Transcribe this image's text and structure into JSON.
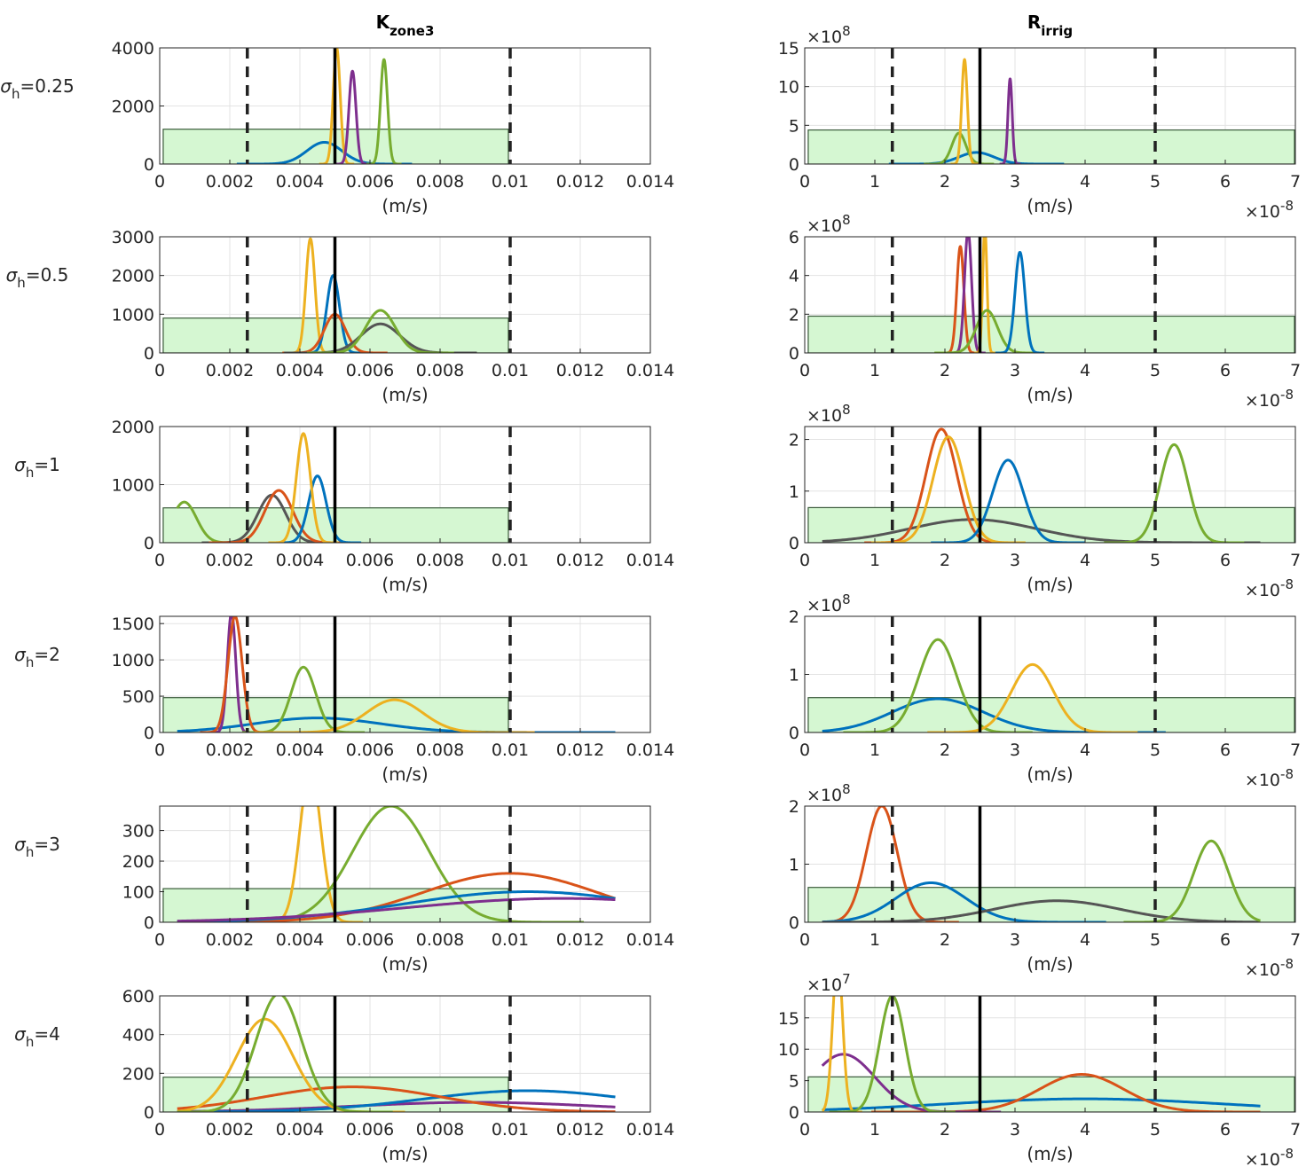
{
  "chart_data": {
    "type": "line",
    "description_columns": [
      "K_zone3",
      "R_irrig"
    ],
    "columns": [
      {
        "title": "K",
        "title_sub": "zone3",
        "xlabel": "(m/s)",
        "xlim": [
          0,
          0.014
        ],
        "xticks": [
          0,
          0.002,
          0.004,
          0.006,
          0.008,
          0.01,
          0.012,
          0.014
        ],
        "xtick_labels": [
          "0",
          "0.002",
          "0.004",
          "0.006",
          "0.008",
          "0.01",
          "0.012",
          "0.014"
        ],
        "x_multiplier": "",
        "x_exponent": "",
        "bounds": [
          0.0025,
          0.01
        ],
        "truth": 0.005
      },
      {
        "title": "R",
        "title_sub": "irrig",
        "xlabel": "(m/s)",
        "xlim": [
          0,
          7
        ],
        "xticks": [
          0,
          1,
          2,
          3,
          4,
          5,
          6,
          7
        ],
        "xtick_labels": [
          "0",
          "1",
          "2",
          "3",
          "4",
          "5",
          "6",
          "7"
        ],
        "x_multiplier": "×10",
        "x_exponent": "-8",
        "bounds": [
          1.25,
          5
        ],
        "truth": 2.5
      }
    ],
    "rows": [
      {
        "label": "σ",
        "label_sub": "h",
        "label_val": "=0.25",
        "panels": [
          {
            "ylim": [
              0,
              4000
            ],
            "yticks": [
              0,
              2000,
              4000
            ],
            "ytick_labels": [
              "0",
              "2000",
              "4000"
            ],
            "y_multiplier": "",
            "y_exponent": "",
            "box_height": 1200,
            "series": [
              {
                "name": "blue",
                "color": "#0072BD",
                "mu": 0.0047,
                "sigma": 0.0005,
                "peak": 750
              },
              {
                "name": "yellow",
                "color": "#EDB120",
                "mu": 0.00505,
                "sigma": 0.0001,
                "peak": 4000
              },
              {
                "name": "purple",
                "color": "#7E2F8E",
                "mu": 0.0055,
                "sigma": 0.0001,
                "peak": 3200
              },
              {
                "name": "green",
                "color": "#77AC30",
                "mu": 0.0064,
                "sigma": 0.0001,
                "peak": 3600
              }
            ]
          },
          {
            "ylim": [
              0,
              15
            ],
            "yticks": [
              0,
              5,
              10,
              15
            ],
            "ytick_labels": [
              "0",
              "5",
              "10",
              "15"
            ],
            "y_multiplier": "×10",
            "y_exponent": "8",
            "box_height": 4.4,
            "series": [
              {
                "name": "blue",
                "color": "#0072BD",
                "mu": 2.45,
                "sigma": 0.25,
                "peak": 1.5
              },
              {
                "name": "green",
                "color": "#77AC30",
                "mu": 2.2,
                "sigma": 0.1,
                "peak": 4.0
              },
              {
                "name": "yellow",
                "color": "#EDB120",
                "mu": 2.28,
                "sigma": 0.04,
                "peak": 13.5
              },
              {
                "name": "purple",
                "color": "#7E2F8E",
                "mu": 2.93,
                "sigma": 0.03,
                "peak": 11
              }
            ]
          }
        ]
      },
      {
        "label": "σ",
        "label_sub": "h",
        "label_val": "=0.5",
        "panels": [
          {
            "ylim": [
              0,
              3000
            ],
            "yticks": [
              0,
              1000,
              2000,
              3000
            ],
            "ytick_labels": [
              "0",
              "1000",
              "2000",
              "3000"
            ],
            "y_multiplier": "",
            "y_exponent": "",
            "box_height": 900,
            "series": [
              {
                "name": "yellow",
                "color": "#EDB120",
                "mu": 0.0043,
                "sigma": 0.00013,
                "peak": 2950
              },
              {
                "name": "blue",
                "color": "#0072BD",
                "mu": 0.00495,
                "sigma": 0.00018,
                "peak": 2000
              },
              {
                "name": "orange",
                "color": "#D95319",
                "mu": 0.005,
                "sigma": 0.0003,
                "peak": 1000
              },
              {
                "name": "gray",
                "color": "#555555",
                "mu": 0.0063,
                "sigma": 0.00055,
                "peak": 750
              },
              {
                "name": "green",
                "color": "#77AC30",
                "mu": 0.0063,
                "sigma": 0.00042,
                "peak": 1100
              }
            ]
          },
          {
            "ylim": [
              0,
              6
            ],
            "yticks": [
              0,
              2,
              4,
              6
            ],
            "ytick_labels": [
              "0",
              "2",
              "4",
              "6"
            ],
            "y_multiplier": "×10",
            "y_exponent": "8",
            "box_height": 1.9,
            "series": [
              {
                "name": "orange",
                "color": "#D95319",
                "mu": 2.22,
                "sigma": 0.05,
                "peak": 5.5
              },
              {
                "name": "purple",
                "color": "#7E2F8E",
                "mu": 2.33,
                "sigma": 0.05,
                "peak": 6.3
              },
              {
                "name": "yellow",
                "color": "#EDB120",
                "mu": 2.57,
                "sigma": 0.03,
                "peak": 6.5
              },
              {
                "name": "green",
                "color": "#77AC30",
                "mu": 2.6,
                "sigma": 0.15,
                "peak": 2.2
              },
              {
                "name": "blue",
                "color": "#0072BD",
                "mu": 3.07,
                "sigma": 0.07,
                "peak": 5.2
              }
            ]
          }
        ]
      },
      {
        "label": "σ",
        "label_sub": "h",
        "label_val": "=1",
        "panels": [
          {
            "ylim": [
              0,
              2000
            ],
            "yticks": [
              0,
              1000,
              2000
            ],
            "ytick_labels": [
              "0",
              "1000",
              "2000"
            ],
            "y_multiplier": "",
            "y_exponent": "",
            "box_height": 600,
            "series": [
              {
                "name": "green",
                "color": "#77AC30",
                "mu": 0.0007,
                "sigma": 0.00035,
                "peak": 700
              },
              {
                "name": "gray",
                "color": "#555555",
                "mu": 0.0032,
                "sigma": 0.0004,
                "peak": 820
              },
              {
                "name": "orange",
                "color": "#D95319",
                "mu": 0.0034,
                "sigma": 0.0004,
                "peak": 900
              },
              {
                "name": "blue",
                "color": "#0072BD",
                "mu": 0.0045,
                "sigma": 0.00025,
                "peak": 1150
              },
              {
                "name": "yellow",
                "color": "#EDB120",
                "mu": 0.0041,
                "sigma": 0.0002,
                "peak": 1880
              }
            ]
          },
          {
            "ylim": [
              0,
              2.25
            ],
            "yticks": [
              0,
              1,
              2
            ],
            "ytick_labels": [
              "0",
              "1",
              "2"
            ],
            "y_multiplier": "×10",
            "y_exponent": "8",
            "box_height": 0.68,
            "series": [
              {
                "name": "gray",
                "color": "#555555",
                "mu": 2.4,
                "sigma": 0.9,
                "peak": 0.45
              },
              {
                "name": "orange",
                "color": "#D95319",
                "mu": 1.95,
                "sigma": 0.22,
                "peak": 2.2
              },
              {
                "name": "yellow",
                "color": "#EDB120",
                "mu": 2.05,
                "sigma": 0.22,
                "peak": 2.05
              },
              {
                "name": "blue",
                "color": "#0072BD",
                "mu": 2.9,
                "sigma": 0.22,
                "peak": 1.6
              },
              {
                "name": "green",
                "color": "#77AC30",
                "mu": 5.27,
                "sigma": 0.2,
                "peak": 1.9
              }
            ]
          }
        ]
      },
      {
        "label": "σ",
        "label_sub": "h",
        "label_val": "=2",
        "panels": [
          {
            "ylim": [
              0,
              1600
            ],
            "yticks": [
              0,
              500,
              1000,
              1500
            ],
            "ytick_labels": [
              "0",
              "500",
              "1000",
              "1500"
            ],
            "y_multiplier": "",
            "y_exponent": "",
            "box_height": 480,
            "series": [
              {
                "name": "blue",
                "color": "#0072BD",
                "mu": 0.0045,
                "sigma": 0.0018,
                "peak": 200
              },
              {
                "name": "purple",
                "color": "#7E2F8E",
                "mu": 0.00205,
                "sigma": 0.00012,
                "peak": 1650
              },
              {
                "name": "orange",
                "color": "#D95319",
                "mu": 0.00215,
                "sigma": 0.0002,
                "peak": 1600
              },
              {
                "name": "green",
                "color": "#77AC30",
                "mu": 0.0041,
                "sigma": 0.00035,
                "peak": 900
              },
              {
                "name": "yellow",
                "color": "#EDB120",
                "mu": 0.0067,
                "sigma": 0.0008,
                "peak": 450
              }
            ]
          },
          {
            "ylim": [
              0,
              2
            ],
            "yticks": [
              0,
              1,
              2
            ],
            "ytick_labels": [
              "0",
              "1",
              "2"
            ],
            "y_multiplier": "×10",
            "y_exponent": "8",
            "box_height": 0.6,
            "series": [
              {
                "name": "blue",
                "color": "#0072BD",
                "mu": 1.9,
                "sigma": 0.65,
                "peak": 0.58
              },
              {
                "name": "green",
                "color": "#77AC30",
                "mu": 1.9,
                "sigma": 0.27,
                "peak": 1.6
              },
              {
                "name": "yellow",
                "color": "#EDB120",
                "mu": 3.25,
                "sigma": 0.3,
                "peak": 1.17
              }
            ]
          }
        ]
      },
      {
        "label": "σ",
        "label_sub": "h",
        "label_val": "=3",
        "panels": [
          {
            "ylim": [
              0,
              380
            ],
            "yticks": [
              0,
              100,
              200,
              300
            ],
            "ytick_labels": [
              "0",
              "100",
              "200",
              "300"
            ],
            "y_multiplier": "",
            "y_exponent": "",
            "box_height": 110,
            "series": [
              {
                "name": "yellow",
                "color": "#EDB120",
                "mu": 0.0043,
                "sigma": 0.0003,
                "peak": 500
              },
              {
                "name": "green",
                "color": "#77AC30",
                "mu": 0.0066,
                "sigma": 0.0011,
                "peak": 380
              },
              {
                "name": "orange",
                "color": "#D95319",
                "mu": 0.01,
                "sigma": 0.0025,
                "peak": 160
              },
              {
                "name": "blue",
                "color": "#0072BD",
                "mu": 0.0105,
                "sigma": 0.0035,
                "peak": 100
              },
              {
                "name": "purple",
                "color": "#7E2F8E",
                "mu": 0.0115,
                "sigma": 0.0045,
                "peak": 78
              }
            ]
          },
          {
            "ylim": [
              0,
              2
            ],
            "yticks": [
              0,
              1,
              2
            ],
            "ytick_labels": [
              "0",
              "1",
              "2"
            ],
            "y_multiplier": "×10",
            "y_exponent": "8",
            "box_height": 0.6,
            "series": [
              {
                "name": "orange",
                "color": "#D95319",
                "mu": 1.1,
                "sigma": 0.22,
                "peak": 2.0
              },
              {
                "name": "blue",
                "color": "#0072BD",
                "mu": 1.8,
                "sigma": 0.5,
                "peak": 0.68
              },
              {
                "name": "gray",
                "color": "#555555",
                "mu": 3.6,
                "sigma": 0.9,
                "peak": 0.37
              },
              {
                "name": "green",
                "color": "#77AC30",
                "mu": 5.8,
                "sigma": 0.25,
                "peak": 1.4
              }
            ]
          }
        ]
      },
      {
        "label": "σ",
        "label_sub": "h",
        "label_val": "=4",
        "panels": [
          {
            "ylim": [
              0,
              600
            ],
            "yticks": [
              0,
              200,
              400,
              600
            ],
            "ytick_labels": [
              "0",
              "200",
              "400",
              "600"
            ],
            "y_multiplier": "",
            "y_exponent": "",
            "box_height": 180,
            "series": [
              {
                "name": "purple",
                "color": "#7E2F8E",
                "mu": 0.009,
                "sigma": 0.0035,
                "peak": 50
              },
              {
                "name": "blue",
                "color": "#0072BD",
                "mu": 0.0105,
                "sigma": 0.003,
                "peak": 110
              },
              {
                "name": "orange",
                "color": "#D95319",
                "mu": 0.0055,
                "sigma": 0.0025,
                "peak": 130
              },
              {
                "name": "yellow",
                "color": "#EDB120",
                "mu": 0.003,
                "sigma": 0.0008,
                "peak": 480
              },
              {
                "name": "green",
                "color": "#77AC30",
                "mu": 0.0034,
                "sigma": 0.00065,
                "peak": 610
              }
            ]
          },
          {
            "ylim": [
              0,
              18.5
            ],
            "yticks": [
              0,
              5,
              10,
              15
            ],
            "ytick_labels": [
              "0",
              "5",
              "10",
              "15"
            ],
            "y_multiplier": "×10",
            "y_exponent": "7",
            "box_height": 5.6,
            "series": [
              {
                "name": "blue",
                "color": "#0072BD",
                "mu": 4.0,
                "sigma": 2.0,
                "peak": 2.1
              },
              {
                "name": "orange",
                "color": "#D95319",
                "mu": 3.95,
                "sigma": 0.6,
                "peak": 6.0
              },
              {
                "name": "purple",
                "color": "#7E2F8E",
                "mu": 0.55,
                "sigma": 0.45,
                "peak": 9.2
              },
              {
                "name": "yellow",
                "color": "#EDB120",
                "mu": 0.47,
                "sigma": 0.07,
                "peak": 25
              },
              {
                "name": "green",
                "color": "#77AC30",
                "mu": 1.25,
                "sigma": 0.18,
                "peak": 18.5
              }
            ]
          }
        ]
      }
    ]
  }
}
